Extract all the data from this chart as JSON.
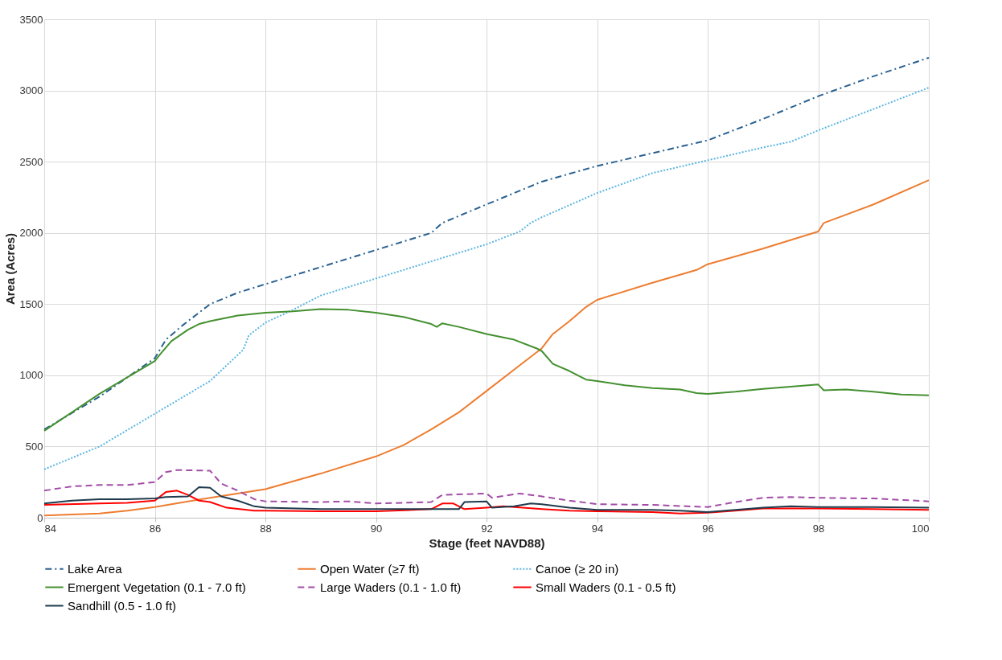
{
  "chart_data": {
    "type": "line",
    "xlabel": "Stage (feet NAVD88)",
    "ylabel": "Area (Acres)",
    "xlim": [
      84,
      100
    ],
    "xticks": [
      84,
      86,
      88,
      90,
      92,
      94,
      96,
      98,
      100
    ],
    "ylim": [
      0,
      3500
    ],
    "yticks": [
      0,
      500,
      1000,
      1500,
      2000,
      2500,
      3000,
      3500
    ],
    "grid": true,
    "legend": "bottom",
    "marker": "none",
    "series": [
      {
        "name": "Lake Area",
        "color": "#2a6190",
        "line_style": "dashdot",
        "x": [
          84,
          85,
          86,
          86.2,
          86.5,
          87,
          87.5,
          88,
          89,
          90,
          91,
          91.2,
          92,
          93,
          94,
          95,
          96,
          97,
          98,
          99,
          100
        ],
        "values": [
          620,
          850,
          1120,
          1250,
          1350,
          1500,
          1580,
          1640,
          1760,
          1880,
          2000,
          2070,
          2200,
          2360,
          2470,
          2560,
          2650,
          2800,
          2960,
          3100,
          3230
        ]
      },
      {
        "name": "Open Water (≥7 ft)",
        "color": "#ed7d31",
        "line_style": "solid",
        "x": [
          84,
          85,
          85.5,
          86,
          87,
          88,
          89,
          90,
          90.5,
          91,
          91.5,
          92,
          92.5,
          93,
          93.2,
          93.5,
          93.8,
          94,
          95,
          95.8,
          96,
          97,
          98,
          98.1,
          99,
          100
        ],
        "values": [
          15,
          30,
          50,
          75,
          140,
          200,
          310,
          430,
          510,
          620,
          740,
          890,
          1040,
          1190,
          1290,
          1380,
          1480,
          1530,
          1650,
          1740,
          1780,
          1890,
          2010,
          2070,
          2200,
          2370
        ]
      },
      {
        "name": "Canoe (≥ 20 in)",
        "color": "#5bb5e0",
        "line_style": "dotted",
        "x": [
          84,
          85,
          86,
          87,
          87.6,
          87.7,
          88,
          88.5,
          89,
          90,
          91,
          92,
          92.6,
          92.8,
          93,
          94,
          95,
          96,
          97,
          97.5,
          98,
          99,
          100
        ],
        "values": [
          340,
          500,
          730,
          960,
          1180,
          1280,
          1370,
          1460,
          1560,
          1680,
          1800,
          1920,
          2010,
          2070,
          2110,
          2280,
          2420,
          2510,
          2600,
          2640,
          2720,
          2870,
          3020
        ]
      },
      {
        "name": "Emergent Vegetation (0.1 - 7.0 ft)",
        "color": "#449030",
        "line_style": "solid",
        "x": [
          84,
          85,
          86,
          86.1,
          86.3,
          86.6,
          86.8,
          87,
          87.5,
          88,
          88.5,
          89,
          89.5,
          90,
          90.5,
          91,
          91.1,
          91.2,
          91.5,
          92,
          92.5,
          92.9,
          93,
          93.2,
          93.5,
          93.8,
          94,
          94.5,
          95,
          95.5,
          95.8,
          96,
          96.5,
          97,
          97.5,
          98,
          98.1,
          98.5,
          99,
          99.5,
          100
        ],
        "values": [
          610,
          870,
          1100,
          1150,
          1240,
          1320,
          1360,
          1380,
          1420,
          1440,
          1450,
          1465,
          1460,
          1440,
          1410,
          1360,
          1340,
          1365,
          1340,
          1290,
          1250,
          1190,
          1170,
          1080,
          1030,
          970,
          960,
          930,
          910,
          900,
          875,
          870,
          885,
          905,
          920,
          935,
          895,
          900,
          885,
          865,
          860
        ]
      },
      {
        "name": "Large Waders (0.1 - 1.0 ft)",
        "color": "#a24ca6",
        "line_style": "dashed",
        "x": [
          84,
          84.5,
          85,
          85.5,
          86,
          86.2,
          86.4,
          87,
          87.2,
          87.5,
          87.8,
          88,
          89,
          89.5,
          90,
          91,
          91.2,
          92,
          92.1,
          92.6,
          93,
          93.5,
          94,
          95,
          96,
          96.5,
          97,
          97.5,
          98,
          99,
          100
        ],
        "values": [
          190,
          220,
          230,
          230,
          250,
          320,
          335,
          330,
          240,
          190,
          130,
          115,
          110,
          115,
          100,
          110,
          160,
          170,
          140,
          170,
          150,
          120,
          95,
          90,
          75,
          110,
          140,
          145,
          140,
          135,
          115
        ]
      },
      {
        "name": "Small Waders (0.1 - 0.5 ft)",
        "color": "#ff0000",
        "line_style": "solid",
        "x": [
          84,
          85,
          85.5,
          86,
          86.2,
          86.4,
          86.6,
          86.8,
          87,
          87.3,
          87.8,
          88,
          89,
          90,
          91,
          91.2,
          91.4,
          91.6,
          92,
          92.3,
          93,
          93.5,
          94,
          95,
          95.5,
          96,
          96.5,
          97,
          98,
          99,
          100
        ],
        "values": [
          90,
          100,
          105,
          120,
          180,
          190,
          160,
          120,
          110,
          70,
          50,
          50,
          45,
          45,
          60,
          100,
          100,
          60,
          70,
          80,
          60,
          50,
          45,
          40,
          30,
          35,
          50,
          65,
          65,
          60,
          55
        ]
      },
      {
        "name": "Sandhill (0.5 - 1.0 ft)",
        "color": "#1f3b4d",
        "line_style": "solid",
        "x": [
          84,
          84.5,
          85,
          85.5,
          86,
          86.2,
          86.6,
          86.8,
          87,
          87.2,
          87.5,
          87.8,
          88,
          89,
          90,
          91,
          91.5,
          91.6,
          92,
          92.1,
          92.5,
          92.8,
          93,
          93.5,
          94,
          95,
          95.5,
          96,
          96.5,
          97,
          97.5,
          98,
          99,
          100
        ],
        "values": [
          100,
          120,
          130,
          130,
          135,
          145,
          150,
          215,
          210,
          150,
          120,
          80,
          70,
          60,
          60,
          60,
          60,
          110,
          115,
          70,
          80,
          100,
          95,
          70,
          55,
          55,
          50,
          40,
          55,
          70,
          80,
          75,
          75,
          70
        ]
      }
    ]
  }
}
